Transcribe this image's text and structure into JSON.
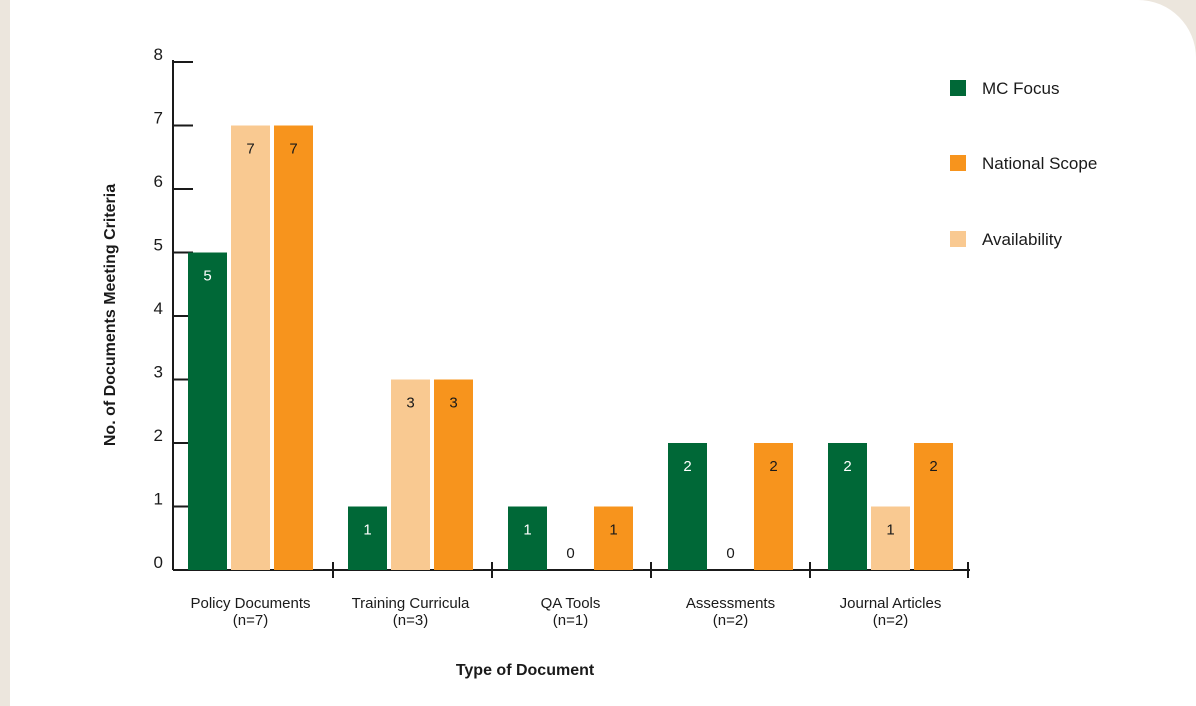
{
  "chart_data": {
    "type": "bar",
    "title": "",
    "xlabel": "Type of Document",
    "ylabel": "No. of Documents Meeting Criteria",
    "ylim": [
      0,
      8
    ],
    "yticks": [
      "0",
      "1",
      "2",
      "3",
      "4",
      "5",
      "6",
      "7",
      "8"
    ],
    "categories": [
      [
        "Policy Documents",
        "(n=7)"
      ],
      [
        "Training Curricula",
        "(n=3)"
      ],
      [
        "QA Tools",
        "(n=1)"
      ],
      [
        "Assessments",
        "(n=2)"
      ],
      [
        "Journal Articles",
        "(n=2)"
      ]
    ],
    "bar_order": [
      "MC Focus",
      "Availability",
      "National Scope"
    ],
    "series": [
      {
        "name": "MC Focus",
        "values": [
          5,
          1,
          1,
          2,
          2
        ],
        "color": "#006837",
        "label_color": "#ffffff"
      },
      {
        "name": "National Scope",
        "values": [
          7,
          3,
          1,
          2,
          2
        ],
        "color": "#f7941d",
        "label_color": "#1a1a1a"
      },
      {
        "name": "Availability",
        "values": [
          7,
          3,
          0,
          0,
          1
        ],
        "color": "#f9c991",
        "label_color": "#1a1a1a"
      }
    ],
    "legend": {
      "position": "top-right",
      "entries": [
        "MC Focus",
        "National Scope",
        "Availability"
      ]
    },
    "grid": false
  }
}
